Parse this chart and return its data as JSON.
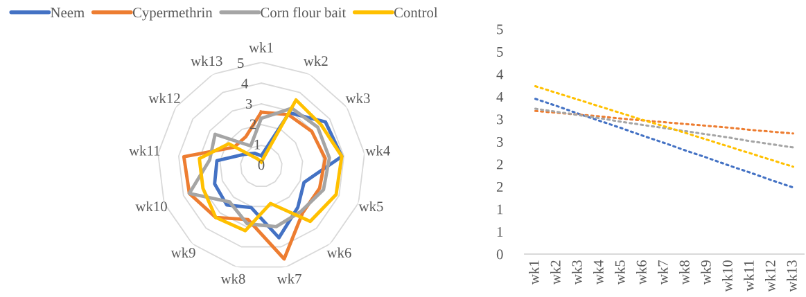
{
  "chart_data": [
    {
      "type": "radar",
      "categories": [
        "wk1",
        "wk2",
        "wk3",
        "wk4",
        "wk5",
        "wk6",
        "wk7",
        "wk8",
        "wk9",
        "wk10",
        "wk11",
        "wk12",
        "wk13"
      ],
      "ylim": [
        0,
        5
      ],
      "yticks": [
        0,
        1,
        2,
        3,
        4,
        5
      ],
      "legend": "top left",
      "grid": true,
      "series": [
        {
          "name": "Neem",
          "color": "#4472c4",
          "values": [
            0.5,
            2.9,
            3.75,
            3.9,
            2.2,
            2.65,
            3.55,
            2.05,
            2.5,
            2.4,
            2.15,
            1.0,
            0.7
          ]
        },
        {
          "name": "Cypermethrin",
          "color": "#ed7d31",
          "values": [
            2.6,
            2.8,
            2.95,
            3.1,
            3.0,
            3.0,
            4.6,
            2.65,
            3.3,
            3.7,
            3.75,
            1.6,
            1.6
          ]
        },
        {
          "name": "Corn flour bait",
          "color": "#a5a5a5",
          "values": [
            2.3,
            3.15,
            3.3,
            3.3,
            3.2,
            2.9,
            3.0,
            2.85,
            2.3,
            3.7,
            2.5,
            2.7,
            1.1
          ]
        },
        {
          "name": "Control",
          "color": "#ffc000",
          "values": [
            0.2,
            3.6,
            3.5,
            3.9,
            3.85,
            3.55,
            1.85,
            3.2,
            3.3,
            3.0,
            3.0,
            1.9,
            0.4
          ]
        }
      ]
    },
    {
      "type": "line",
      "categories": [
        "wk1",
        "wk2",
        "wk3",
        "wk4",
        "wk5",
        "wk6",
        "wk7",
        "wk8",
        "wk9",
        "wk10",
        "wk11",
        "wk12",
        "wk13"
      ],
      "ylim": [
        0,
        5
      ],
      "line_style": "dotted",
      "yticks": [
        {
          "value": 0,
          "label": "0"
        },
        {
          "value": 0.5,
          "label": "1"
        },
        {
          "value": 1,
          "label": "1"
        },
        {
          "value": 1.5,
          "label": "2"
        },
        {
          "value": 2,
          "label": "2"
        },
        {
          "value": 2.5,
          "label": "3"
        },
        {
          "value": 3,
          "label": "3"
        },
        {
          "value": 3.5,
          "label": "4"
        },
        {
          "value": 4,
          "label": "4"
        },
        {
          "value": 4.5,
          "label": "5"
        },
        {
          "value": 5,
          "label": "5"
        }
      ],
      "series": [
        {
          "color": "#4472c4",
          "values": [
            3.45,
            3.29,
            3.12,
            2.96,
            2.8,
            2.63,
            2.47,
            2.3,
            2.14,
            1.97,
            1.81,
            1.64,
            1.48
          ]
        },
        {
          "color": "#ed7d31",
          "values": [
            3.18,
            3.14,
            3.1,
            3.06,
            3.01,
            2.97,
            2.93,
            2.89,
            2.85,
            2.81,
            2.76,
            2.72,
            2.68
          ]
        },
        {
          "color": "#a5a5a5",
          "values": [
            3.23,
            3.16,
            3.09,
            3.02,
            2.94,
            2.87,
            2.8,
            2.73,
            2.66,
            2.59,
            2.51,
            2.44,
            2.37
          ]
        },
        {
          "color": "#ffc000",
          "values": [
            3.73,
            3.58,
            3.43,
            3.28,
            3.13,
            2.98,
            2.84,
            2.69,
            2.54,
            2.39,
            2.24,
            2.09,
            1.94
          ]
        }
      ]
    }
  ]
}
